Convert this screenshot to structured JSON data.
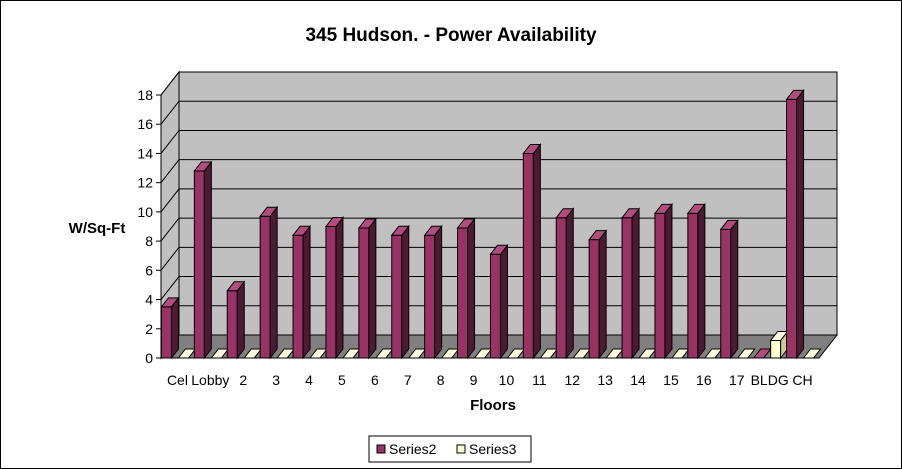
{
  "chart_data": {
    "type": "bar",
    "title": "345 Hudson. - Power Availability",
    "xlabel": "Floors",
    "ylabel": "W/Sq-Ft",
    "categories": [
      "Cel",
      "Lobby",
      "2",
      "3",
      "4",
      "5",
      "6",
      "7",
      "8",
      "9",
      "10",
      "11",
      "12",
      "13",
      "14",
      "15",
      "16",
      "17",
      "BLDG",
      "CH"
    ],
    "series": [
      {
        "name": "Series2",
        "values": [
          3.5,
          12.8,
          4.6,
          9.7,
          8.4,
          9.0,
          8.9,
          8.4,
          8.4,
          8.9,
          7.1,
          14.0,
          9.6,
          8.1,
          9.6,
          9.9,
          9.9,
          8.8,
          0,
          17.7
        ]
      },
      {
        "name": "Series3",
        "values": [
          0,
          0,
          0,
          0,
          0,
          0,
          0,
          0,
          0,
          0,
          0,
          0,
          0,
          0,
          0,
          0,
          0,
          0,
          1.2,
          0
        ]
      }
    ],
    "yticks": [
      "0",
      "2",
      "4",
      "6",
      "8",
      "10",
      "12",
      "14",
      "16",
      "18"
    ],
    "ylim": [
      0,
      18
    ],
    "grid": true,
    "legend_position": "bottom",
    "colors": {
      "series2_face": "#993366",
      "series2_side": "#4d1a33",
      "series2_top": "#b34d80",
      "series3_face": "#ffffcc",
      "series3_side": "#cccc99",
      "series3_top": "#ffffe0",
      "wall": "#c0c0c0",
      "floor": "#808080"
    }
  }
}
